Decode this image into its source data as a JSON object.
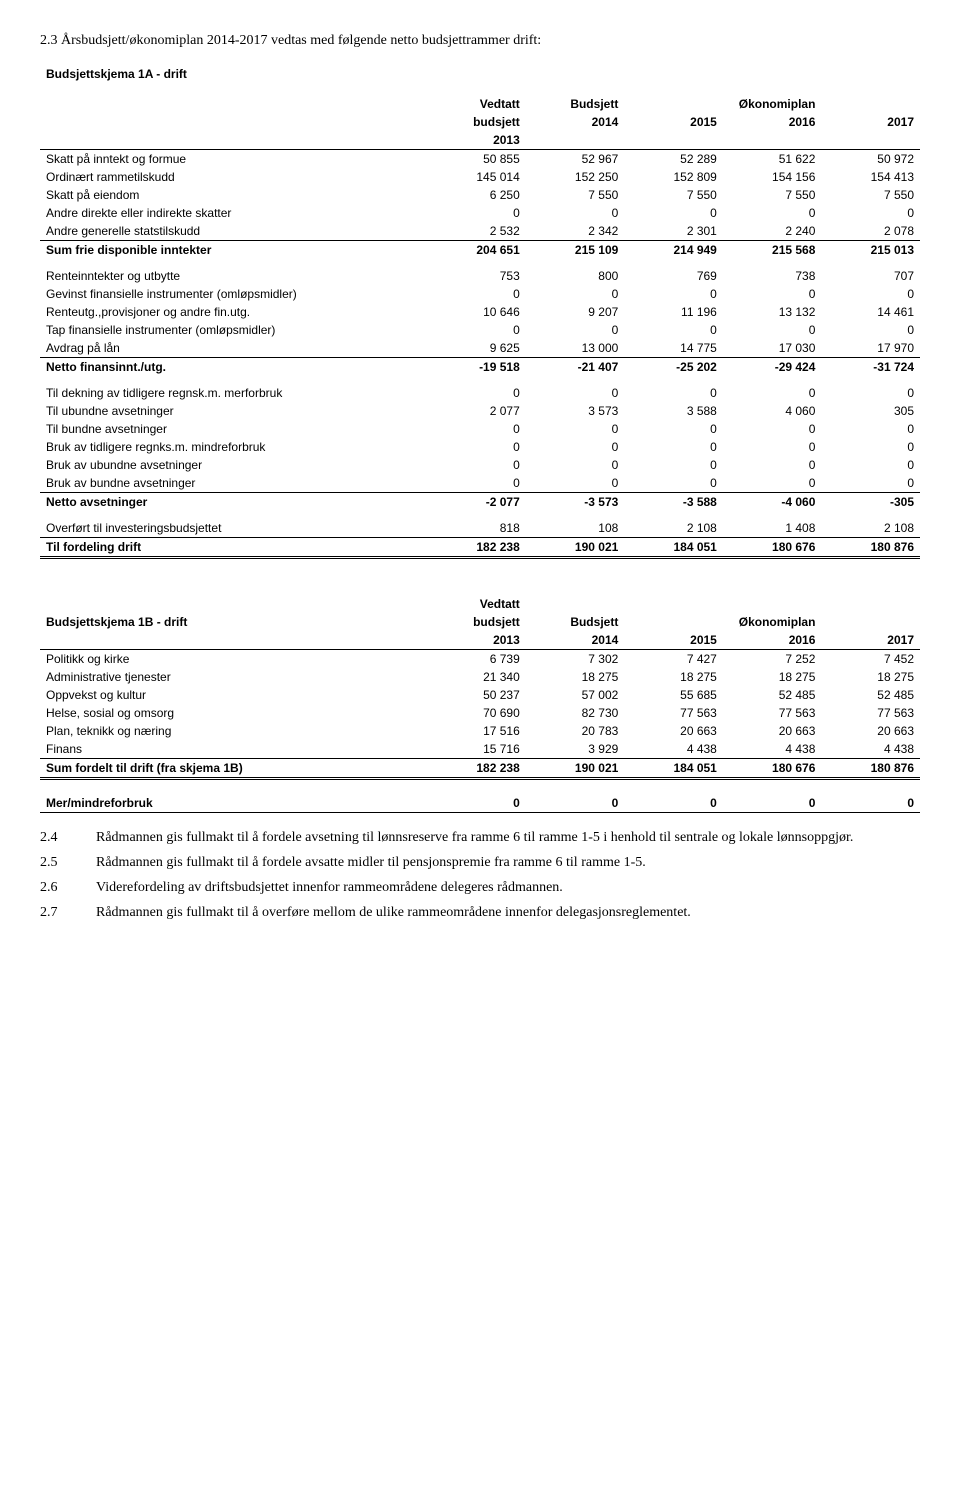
{
  "intro": "2.3 Årsbudsjett/økonomiplan 2014-2017 vedtas med følgende netto budsjettrammer drift:",
  "table1A": {
    "title": "Budsjettskjema 1A - drift",
    "header": {
      "vedtatt": "Vedtatt",
      "budsjett_col": "Budsjett",
      "okonomiplan": "Økonomiplan",
      "budsjett_row": "budsjett",
      "y2014": "2014",
      "y2015": "2015",
      "y2016": "2016",
      "y2017": "2017",
      "y2013": "2013"
    },
    "rows": [
      {
        "label": "Skatt på inntekt og formue",
        "v": [
          "50 855",
          "52 967",
          "52 289",
          "51 622",
          "50 972"
        ]
      },
      {
        "label": "Ordinært rammetilskudd",
        "v": [
          "145 014",
          "152 250",
          "152 809",
          "154 156",
          "154 413"
        ]
      },
      {
        "label": "Skatt på eiendom",
        "v": [
          "6 250",
          "7 550",
          "7 550",
          "7 550",
          "7 550"
        ]
      },
      {
        "label": "Andre direkte eller indirekte skatter",
        "v": [
          "0",
          "0",
          "0",
          "0",
          "0"
        ]
      },
      {
        "label": "Andre generelle statstilskudd",
        "v": [
          "2 532",
          "2 342",
          "2 301",
          "2 240",
          "2 078"
        ],
        "underline": true
      },
      {
        "label": "Sum frie disponible inntekter",
        "v": [
          "204 651",
          "215 109",
          "214 949",
          "215 568",
          "215 013"
        ],
        "bold": true
      }
    ],
    "block2": [
      {
        "label": "Renteinntekter og utbytte",
        "v": [
          "753",
          "800",
          "769",
          "738",
          "707"
        ],
        "gap": true
      },
      {
        "label": "Gevinst finansielle instrumenter (omløpsmidler)",
        "v": [
          "0",
          "0",
          "0",
          "0",
          "0"
        ]
      },
      {
        "label": "Renteutg.,provisjoner og andre fin.utg.",
        "v": [
          "10 646",
          "9 207",
          "11 196",
          "13 132",
          "14 461"
        ]
      },
      {
        "label": "Tap finansielle instrumenter (omløpsmidler)",
        "v": [
          "0",
          "0",
          "0",
          "0",
          "0"
        ]
      },
      {
        "label": "Avdrag på lån",
        "v": [
          "9 625",
          "13 000",
          "14 775",
          "17 030",
          "17 970"
        ],
        "underline": true
      },
      {
        "label": "Netto finansinnt./utg.",
        "v": [
          "-19 518",
          "-21 407",
          "-25 202",
          "-29 424",
          "-31 724"
        ],
        "bold": true
      }
    ],
    "block3": [
      {
        "label": "Til dekning av tidligere regnsk.m. merforbruk",
        "v": [
          "0",
          "0",
          "0",
          "0",
          "0"
        ],
        "gap": true
      },
      {
        "label": "Til ubundne avsetninger",
        "v": [
          "2 077",
          "3 573",
          "3 588",
          "4 060",
          "305"
        ]
      },
      {
        "label": "Til bundne avsetninger",
        "v": [
          "0",
          "0",
          "0",
          "0",
          "0"
        ]
      },
      {
        "label": "Bruk av tidligere regnks.m. mindreforbruk",
        "v": [
          "0",
          "0",
          "0",
          "0",
          "0"
        ]
      },
      {
        "label": "Bruk av ubundne avsetninger",
        "v": [
          "0",
          "0",
          "0",
          "0",
          "0"
        ]
      },
      {
        "label": "Bruk av bundne avsetninger",
        "v": [
          "0",
          "0",
          "0",
          "0",
          "0"
        ],
        "underline": true
      },
      {
        "label": "Netto avsetninger",
        "v": [
          "-2 077",
          "-3 573",
          "-3 588",
          "-4 060",
          "-305"
        ],
        "bold": true
      }
    ],
    "block4": [
      {
        "label": "Overført til investeringsbudsjettet",
        "v": [
          "818",
          "108",
          "2 108",
          "1 408",
          "2 108"
        ],
        "gap": true,
        "underline": true
      },
      {
        "label": "Til fordeling drift",
        "v": [
          "182 238",
          "190 021",
          "184 051",
          "180 676",
          "180 876"
        ],
        "bold": true,
        "dbl": true
      }
    ]
  },
  "table1B": {
    "header": {
      "vedtatt": "Vedtatt",
      "label": "Budsjettskjema 1B - drift",
      "budsjett_row": "budsjett",
      "budsjett_col": "Budsjett",
      "okonomiplan": "Økonomiplan",
      "y2013": "2013",
      "y2014": "2014",
      "y2015": "2015",
      "y2016": "2016",
      "y2017": "2017"
    },
    "rows": [
      {
        "label": "Politikk og kirke",
        "v": [
          "6 739",
          "7 302",
          "7 427",
          "7 252",
          "7 452"
        ]
      },
      {
        "label": "Administrative tjenester",
        "v": [
          "21 340",
          "18 275",
          "18 275",
          "18 275",
          "18 275"
        ]
      },
      {
        "label": "Oppvekst og kultur",
        "v": [
          "50 237",
          "57 002",
          "55 685",
          "52 485",
          "52 485"
        ]
      },
      {
        "label": "Helse, sosial og omsorg",
        "v": [
          "70 690",
          "82 730",
          "77 563",
          "77 563",
          "77 563"
        ]
      },
      {
        "label": "Plan, teknikk og næring",
        "v": [
          "17 516",
          "20 783",
          "20 663",
          "20 663",
          "20 663"
        ]
      },
      {
        "label": "Finans",
        "v": [
          "15 716",
          "3 929",
          "4 438",
          "4 438",
          "4 438"
        ],
        "underline": true
      },
      {
        "label": "Sum fordelt til drift (fra skjema 1B)",
        "v": [
          "182 238",
          "190 021",
          "184 051",
          "180 676",
          "180 876"
        ],
        "bold": true,
        "dbl": true
      }
    ],
    "footer": {
      "label": "Mer/mindreforbruk",
      "v": [
        "0",
        "0",
        "0",
        "0",
        "0"
      ],
      "bold": true
    }
  },
  "list": [
    {
      "num": "2.4",
      "txt": "Rådmannen gis fullmakt til å fordele avsetning til lønnsreserve fra ramme 6 til ramme 1-5 i henhold til sentrale og lokale lønnsoppgjør."
    },
    {
      "num": "2.5",
      "txt": "Rådmannen gis fullmakt til å fordele avsatte midler til pensjonspremie fra ramme 6 til ramme 1-5."
    },
    {
      "num": "2.6",
      "txt": "Viderefordeling av driftsbudsjettet innenfor rammeområdene delegeres rådmannen."
    },
    {
      "num": "2.7",
      "txt": "Rådmannen gis fullmakt til å overføre mellom de ulike rammeområdene innenfor delegasjonsreglementet."
    }
  ]
}
